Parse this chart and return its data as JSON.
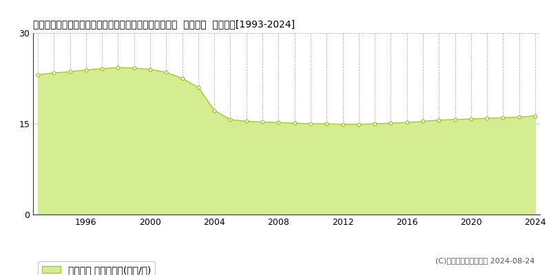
{
  "title": "長野県塩尻市大字広丘高出字下桔梗ケ原２２１３番２２  地価公示  地価推移[1993-2024]",
  "years": [
    1993,
    1994,
    1995,
    1996,
    1997,
    1998,
    1999,
    2000,
    2001,
    2002,
    2003,
    2004,
    2005,
    2006,
    2007,
    2008,
    2009,
    2010,
    2011,
    2012,
    2013,
    2014,
    2015,
    2016,
    2017,
    2018,
    2019,
    2020,
    2021,
    2022,
    2023,
    2024
  ],
  "values": [
    23.1,
    23.4,
    23.6,
    23.9,
    24.1,
    24.3,
    24.2,
    24.0,
    23.5,
    22.5,
    21.0,
    17.2,
    15.7,
    15.4,
    15.3,
    15.2,
    15.1,
    15.0,
    15.0,
    14.9,
    14.9,
    15.0,
    15.1,
    15.2,
    15.4,
    15.6,
    15.7,
    15.8,
    15.9,
    16.0,
    16.1,
    16.3
  ],
  "fill_color": "#d4ed91",
  "line_color": "#a8c832",
  "marker_color": "#ffffff",
  "marker_edge_color": "#a8c832",
  "bg_color": "#ffffff",
  "plot_bg_color": "#ffffff",
  "grid_color": "#aaaaaa",
  "ylim": [
    0,
    30
  ],
  "yticks": [
    0,
    15,
    30
  ],
  "xtick_years": [
    1996,
    2000,
    2004,
    2008,
    2012,
    2016,
    2020,
    2024
  ],
  "legend_label": "地価公示 平均坪単価(万円/坪)",
  "legend_marker_color": "#d4ed91",
  "legend_marker_edge": "#a8c832",
  "copyright_text": "(C)土地価格ドットコム 2024-08-24",
  "title_fontsize": 10,
  "axis_fontsize": 9,
  "legend_fontsize": 9,
  "copyright_fontsize": 8
}
